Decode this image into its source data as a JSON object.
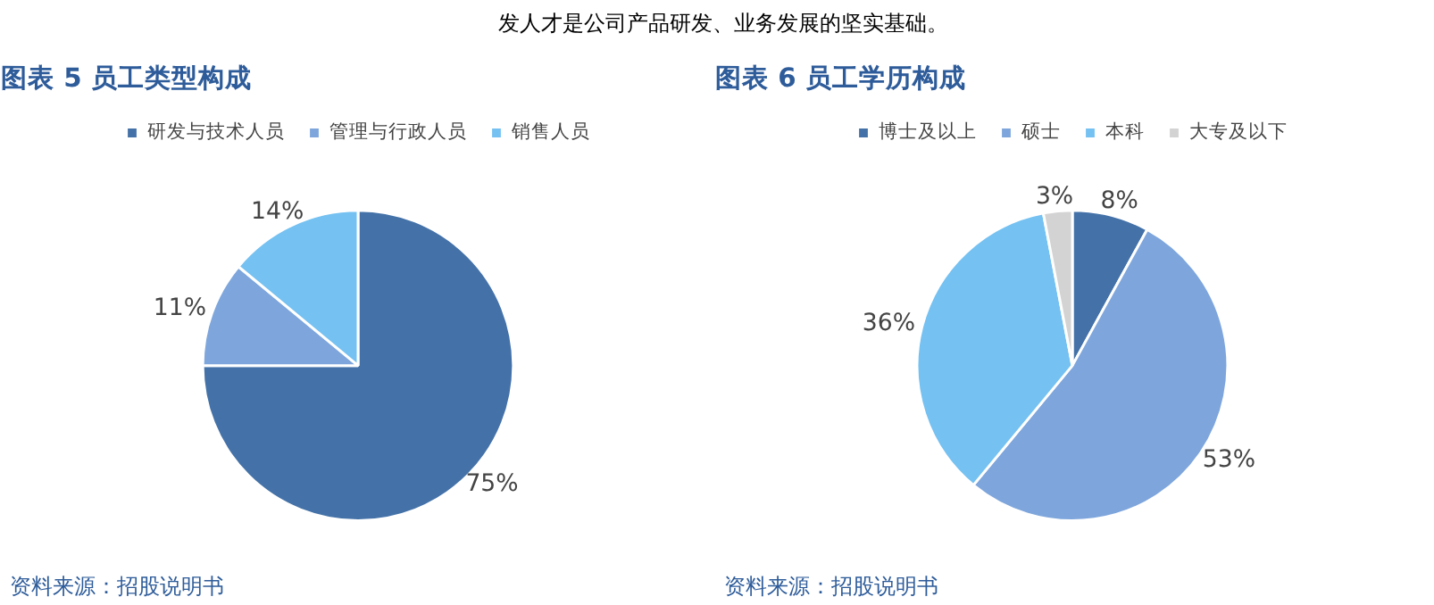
{
  "chart_data": [
    {
      "type": "pie",
      "title": "图表 5 员工类型构成",
      "categories": [
        "研发与技术人员",
        "管理与行政人员",
        "销售人员"
      ],
      "values": [
        75,
        11,
        14
      ],
      "colors": [
        "#4472a8",
        "#7ea6dc",
        "#74c1f2"
      ],
      "value_labels": [
        "75%",
        "11%",
        "14%"
      ],
      "legend": "top",
      "annotations": [
        "发人才是公司产品研发、业务发展的坚实基础。",
        "资料来源：招股说明书"
      ]
    },
    {
      "type": "pie",
      "title": "图表 6 员工学历构成",
      "categories": [
        "博士及以上",
        "硕士",
        "本科",
        "大专及以下"
      ],
      "values": [
        8,
        53,
        36,
        3
      ],
      "colors": [
        "#4472a8",
        "#7ea6dc",
        "#74c1f2",
        "#d3d3d3"
      ],
      "value_labels": [
        "8%",
        "53%",
        "36%",
        "3%"
      ],
      "legend": "top",
      "annotations": [
        "资料来源：招股说明书"
      ]
    }
  ]
}
